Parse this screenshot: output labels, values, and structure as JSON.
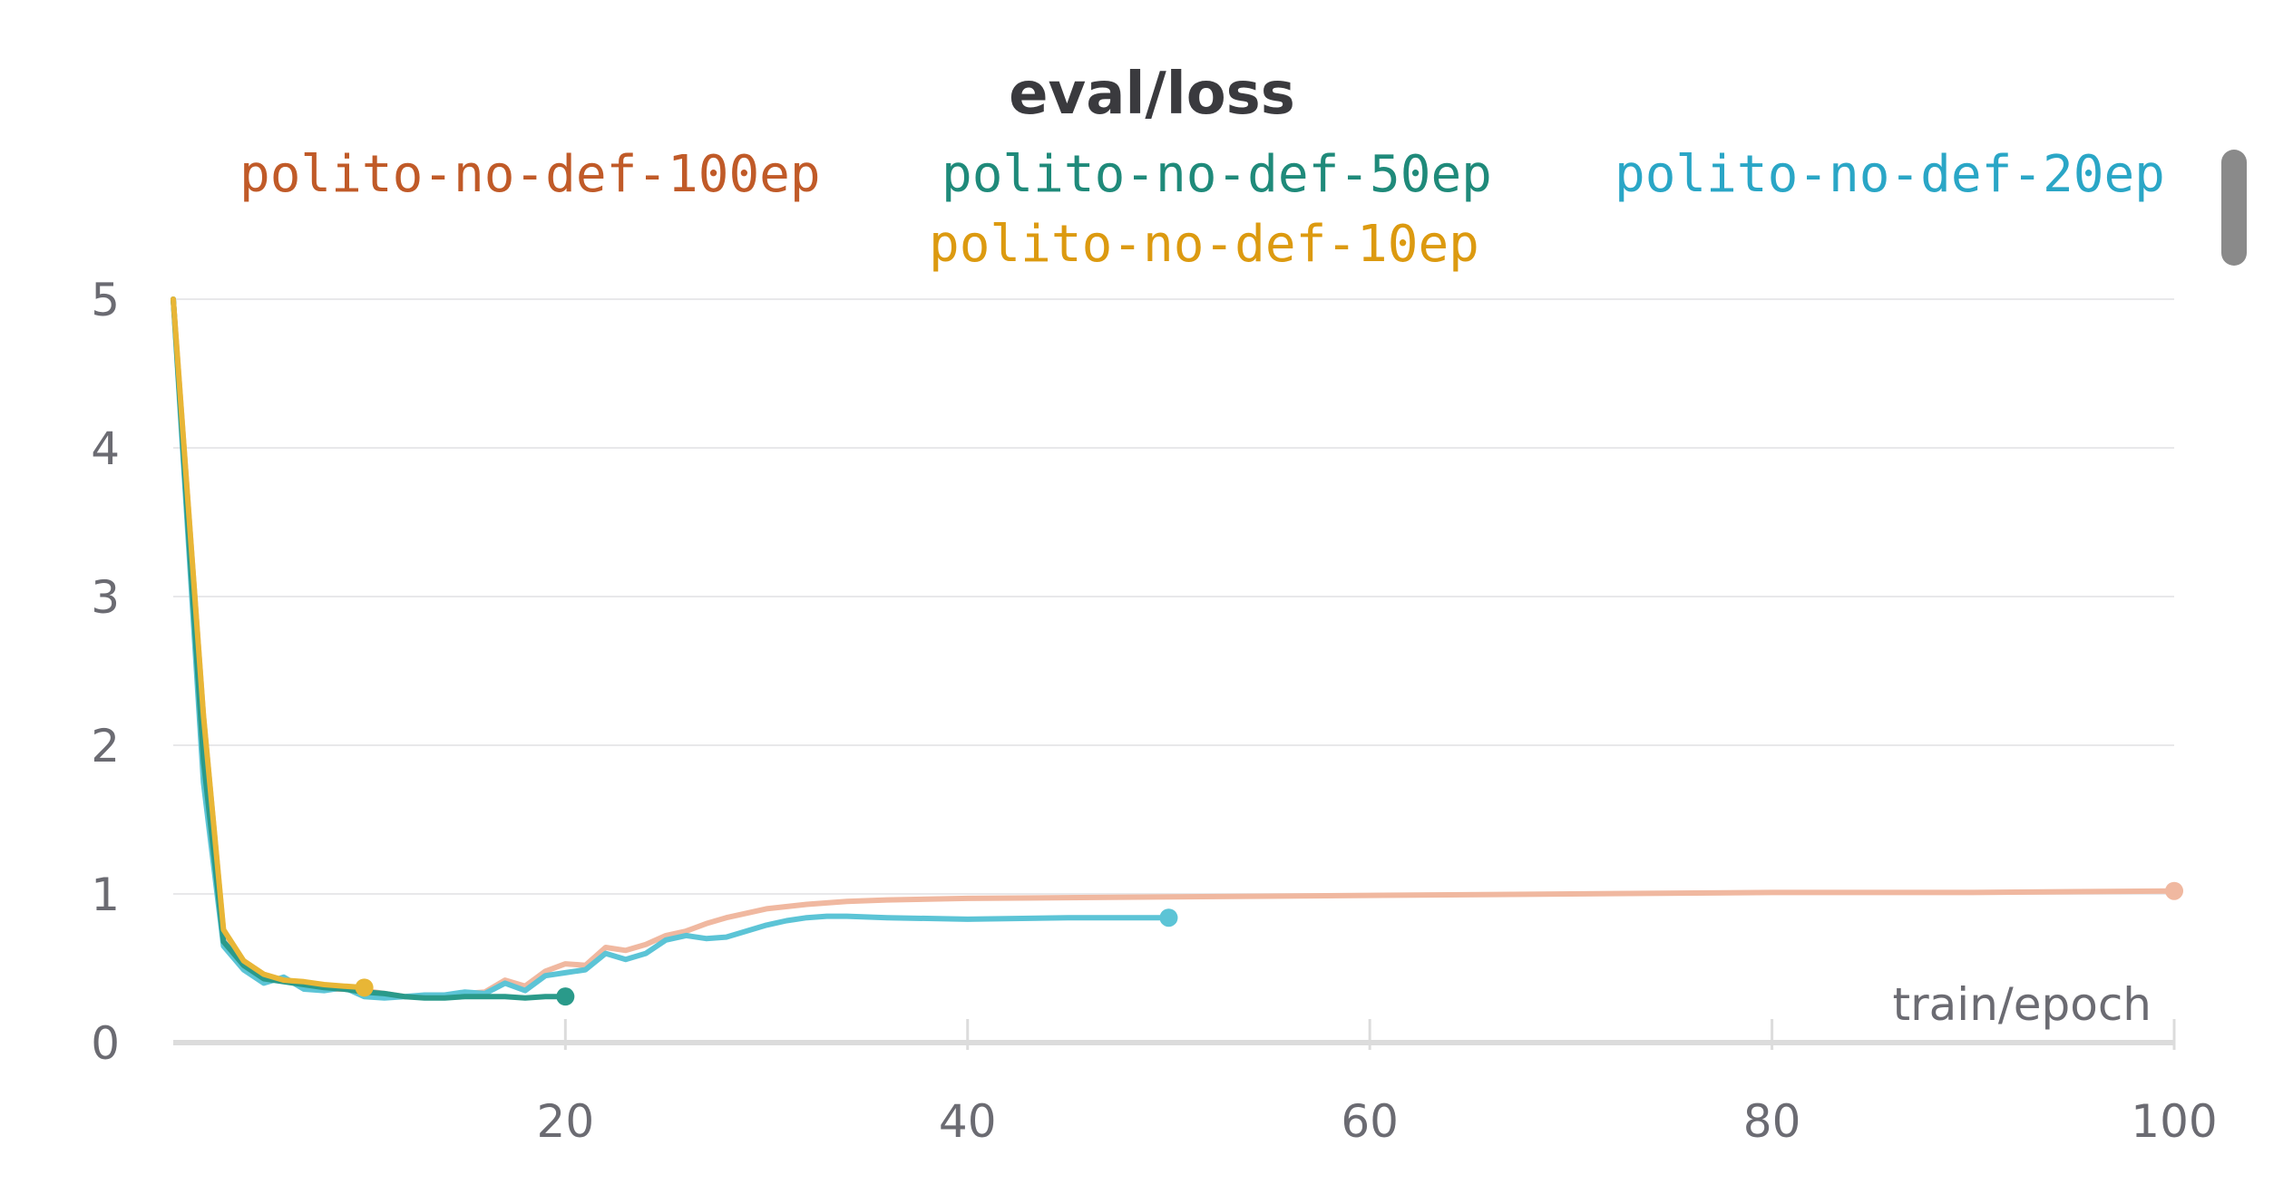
{
  "colors": {
    "polito-no-def-100ep": "#f0b8a0",
    "polito-no-def-50ep": "#2a9a8a",
    "polito-no-def-20ep": "#5cc4d6",
    "polito-no-def-10ep": "#e8b636",
    "legend-100ep": "#c05a28",
    "legend-50ep": "#1f8a7a",
    "legend-20ep": "#2aa6c6",
    "legend-10ep": "#dc9a10",
    "grid": "#e8e8ea",
    "axis": "#dcdcdc"
  },
  "chart_data": {
    "type": "line",
    "title": "eval/loss",
    "xlabel": "train/epoch",
    "ylabel": "",
    "xlim": [
      0.5,
      100
    ],
    "ylim": [
      0,
      5
    ],
    "xticks": [
      20,
      40,
      60,
      80,
      100
    ],
    "yticks": [
      0,
      1,
      2,
      3,
      4,
      5
    ],
    "grid": true,
    "legend_placement": "top",
    "series": [
      {
        "name": "polito-no-def-100ep",
        "x": [
          0.5,
          2,
          3,
          4,
          5,
          6,
          7,
          8,
          9,
          10,
          11,
          12,
          13,
          14,
          15,
          16,
          17,
          18,
          19,
          20,
          21,
          22,
          23,
          24,
          25,
          26,
          27,
          28,
          29,
          30,
          32,
          34,
          36,
          40,
          50,
          60,
          70,
          80,
          90,
          100
        ],
        "y": [
          5.0,
          2.2,
          0.75,
          0.55,
          0.46,
          0.42,
          0.38,
          0.36,
          0.36,
          0.35,
          0.33,
          0.31,
          0.31,
          0.31,
          0.33,
          0.34,
          0.42,
          0.38,
          0.48,
          0.53,
          0.52,
          0.64,
          0.62,
          0.66,
          0.72,
          0.75,
          0.8,
          0.84,
          0.87,
          0.9,
          0.93,
          0.95,
          0.96,
          0.97,
          0.98,
          0.99,
          1.0,
          1.01,
          1.01,
          1.02
        ]
      },
      {
        "name": "polito-no-def-50ep",
        "x": [
          0.5,
          2,
          3,
          4,
          5,
          6,
          7,
          8,
          9,
          10,
          11,
          12,
          13,
          14,
          15,
          16,
          17,
          18,
          19,
          20
        ],
        "y": [
          5.0,
          1.9,
          0.68,
          0.52,
          0.43,
          0.41,
          0.39,
          0.37,
          0.36,
          0.34,
          0.33,
          0.31,
          0.3,
          0.3,
          0.31,
          0.31,
          0.31,
          0.3,
          0.31,
          0.31
        ]
      },
      {
        "name": "polito-no-def-20ep",
        "x": [
          0.5,
          2,
          3,
          4,
          5,
          6,
          7,
          8,
          9,
          10,
          11,
          12,
          13,
          14,
          15,
          16,
          17,
          18,
          19,
          20,
          21,
          22,
          23,
          24,
          25,
          26,
          27,
          28,
          29,
          30,
          31,
          32,
          33,
          34,
          36,
          40,
          45,
          50
        ],
        "y": [
          5.0,
          1.75,
          0.65,
          0.49,
          0.4,
          0.44,
          0.36,
          0.35,
          0.37,
          0.31,
          0.3,
          0.31,
          0.32,
          0.32,
          0.34,
          0.33,
          0.4,
          0.35,
          0.45,
          0.47,
          0.49,
          0.6,
          0.56,
          0.6,
          0.69,
          0.72,
          0.7,
          0.71,
          0.75,
          0.79,
          0.82,
          0.84,
          0.85,
          0.85,
          0.84,
          0.83,
          0.84,
          0.84
        ]
      },
      {
        "name": "polito-no-def-10ep",
        "x": [
          0.5,
          2,
          3,
          4,
          5,
          6,
          7,
          8,
          9,
          10
        ],
        "y": [
          5.0,
          2.2,
          0.76,
          0.55,
          0.46,
          0.42,
          0.41,
          0.39,
          0.38,
          0.37
        ]
      }
    ]
  }
}
